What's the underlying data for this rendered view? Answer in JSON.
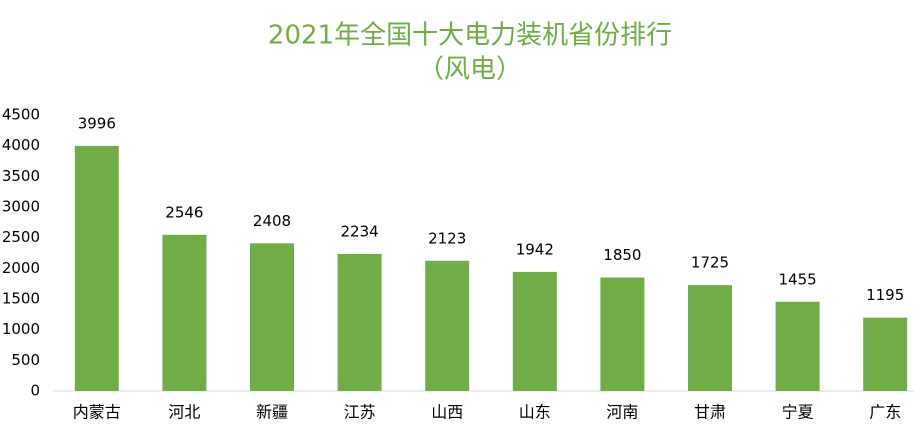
{
  "chart_data": {
    "type": "bar",
    "title": "2021年全国十大电力装机省份排行",
    "subtitle": "（风电）",
    "categories": [
      "内蒙古",
      "河北",
      "新疆",
      "江苏",
      "山西",
      "山东",
      "河南",
      "甘肃",
      "宁夏",
      "广东"
    ],
    "values": [
      3996,
      2546,
      2408,
      2234,
      2123,
      1942,
      1850,
      1725,
      1455,
      1195
    ],
    "color": "#70ad47",
    "ylim": [
      0,
      4500
    ],
    "yticks": [
      0,
      500,
      1000,
      1500,
      2000,
      2500,
      3000,
      3500,
      4000,
      4500
    ],
    "grid": false
  }
}
